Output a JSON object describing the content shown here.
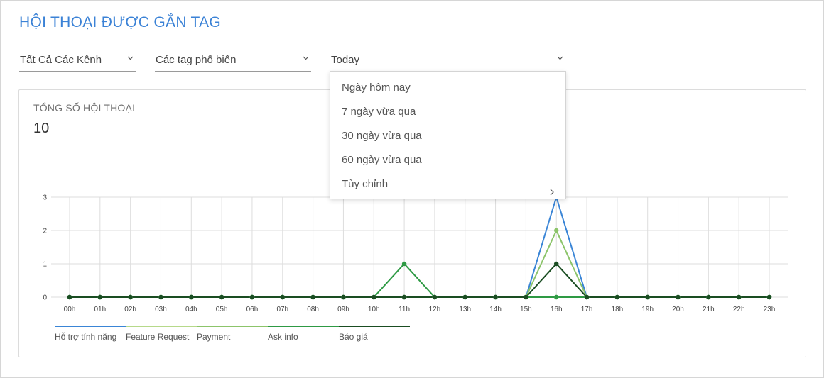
{
  "page": {
    "title": "HỘI THOẠI ĐƯỢC GẮN TAG"
  },
  "filters": {
    "channel": "Tất Cả Các Kênh",
    "tags": "Các tag phổ biến",
    "date_range": "Today"
  },
  "date_menu": {
    "items": [
      {
        "label": "Ngày hôm nay"
      },
      {
        "label": "7 ngày vừa qua"
      },
      {
        "label": "30 ngày vừa qua"
      },
      {
        "label": "60 ngày vừa qua"
      },
      {
        "label": "Tùy chỉnh",
        "has_submenu": true
      }
    ]
  },
  "summary": {
    "label": "TỔNG SỐ HỘI THOẠI",
    "value": "10"
  },
  "colors": {
    "title": "#3b82d6",
    "grid": "#dddddd"
  },
  "chart_data": {
    "type": "line",
    "x": [
      "00h",
      "01h",
      "02h",
      "03h",
      "04h",
      "05h",
      "06h",
      "07h",
      "08h",
      "09h",
      "10h",
      "11h",
      "12h",
      "13h",
      "14h",
      "15h",
      "16h",
      "17h",
      "18h",
      "19h",
      "20h",
      "21h",
      "22h",
      "23h"
    ],
    "ylim": [
      0,
      3
    ],
    "yticks": [
      0,
      1,
      2,
      3
    ],
    "grid": true,
    "legend_position": "bottom-left",
    "series": [
      {
        "name": "Hỗ trợ tính năng",
        "color": "#3a85d6",
        "values": [
          0,
          0,
          0,
          0,
          0,
          0,
          0,
          0,
          0,
          0,
          0,
          0,
          0,
          0,
          0,
          0,
          3,
          0,
          0,
          0,
          0,
          0,
          0,
          0
        ]
      },
      {
        "name": "Feature Request",
        "color": "#b6d98a",
        "values": [
          0,
          0,
          0,
          0,
          0,
          0,
          0,
          0,
          0,
          0,
          0,
          0,
          0,
          0,
          0,
          0,
          0,
          0,
          0,
          0,
          0,
          0,
          0,
          0
        ]
      },
      {
        "name": "Payment",
        "color": "#8cc46a",
        "values": [
          0,
          0,
          0,
          0,
          0,
          0,
          0,
          0,
          0,
          0,
          0,
          0,
          0,
          0,
          0,
          0,
          2,
          0,
          0,
          0,
          0,
          0,
          0,
          0
        ]
      },
      {
        "name": "Ask info",
        "color": "#2e9a44",
        "values": [
          0,
          0,
          0,
          0,
          0,
          0,
          0,
          0,
          0,
          0,
          0,
          1,
          0,
          0,
          0,
          0,
          0,
          0,
          0,
          0,
          0,
          0,
          0,
          0
        ]
      },
      {
        "name": "Báo giá",
        "color": "#1a4d22",
        "values": [
          0,
          0,
          0,
          0,
          0,
          0,
          0,
          0,
          0,
          0,
          0,
          0,
          0,
          0,
          0,
          0,
          1,
          0,
          0,
          0,
          0,
          0,
          0,
          0
        ]
      }
    ]
  }
}
